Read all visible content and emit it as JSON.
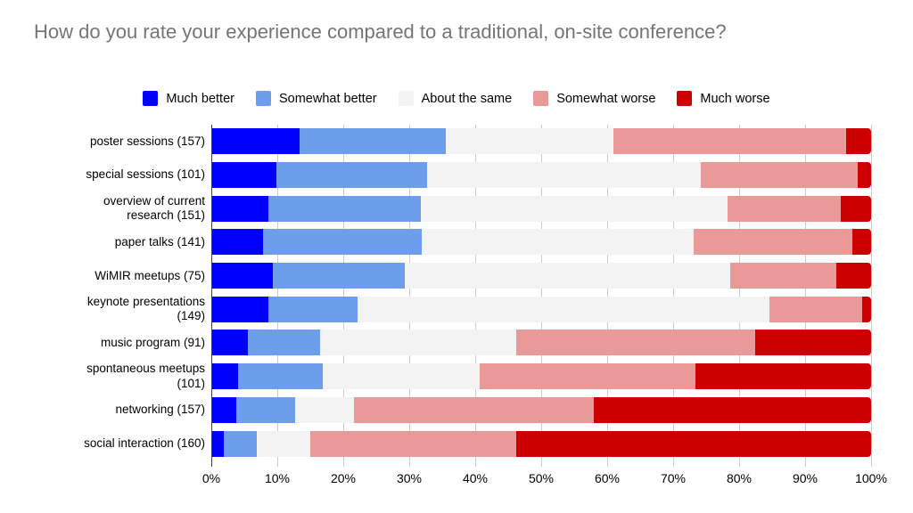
{
  "title": "How do you rate your experience compared to a traditional, on-site conference?",
  "chart_data": {
    "type": "bar",
    "stacked": true,
    "orientation": "horizontal",
    "unit": "percent",
    "title": "How do you rate your experience compared to a traditional, on-site conference?",
    "categories": [
      "poster sessions (157)",
      "special sessions (101)",
      "overview of current research (151)",
      "paper talks (141)",
      "WiMIR meetups (75)",
      "keynote presentations (149)",
      "music program (91)",
      "spontaneous meetups (101)",
      "networking (157)",
      "social interaction (160)"
    ],
    "series": [
      {
        "name": "Much better",
        "color": "#0000FF",
        "values": [
          13.4,
          9.9,
          8.6,
          7.8,
          9.3,
          8.7,
          5.5,
          4.0,
          3.8,
          1.9
        ]
      },
      {
        "name": "Somewhat better",
        "color": "#6D9EEB",
        "values": [
          22.2,
          22.8,
          23.2,
          24.1,
          20.0,
          13.4,
          11.0,
          12.9,
          8.9,
          5.0
        ]
      },
      {
        "name": "About the same",
        "color": "#F3F3F3",
        "values": [
          25.4,
          41.6,
          46.4,
          41.1,
          49.3,
          62.4,
          29.7,
          23.8,
          8.9,
          8.1
        ]
      },
      {
        "name": "Somewhat worse",
        "color": "#EA9999",
        "values": [
          35.2,
          23.8,
          17.2,
          24.1,
          16.0,
          14.1,
          36.3,
          32.7,
          36.3,
          31.3
        ]
      },
      {
        "name": "Much worse",
        "color": "#CC0000",
        "values": [
          3.8,
          2.0,
          4.6,
          2.8,
          5.3,
          1.3,
          17.6,
          26.7,
          42.0,
          53.8
        ]
      }
    ],
    "x_ticks": [
      "0%",
      "10%",
      "20%",
      "30%",
      "40%",
      "50%",
      "60%",
      "70%",
      "80%",
      "90%",
      "100%"
    ],
    "xlim": [
      0,
      100
    ],
    "legend_position": "top",
    "grid": "vertical",
    "colors": {
      "title_text": "#757575",
      "gridline": "#cccccc",
      "axis_line": "#424242",
      "label_text": "#000000"
    }
  }
}
